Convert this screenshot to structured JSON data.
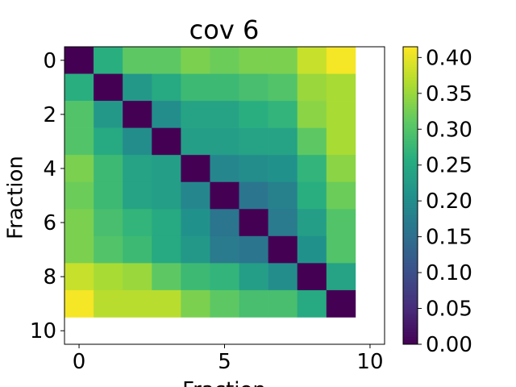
{
  "chart_data": {
    "type": "heatmap",
    "title": "cov 6",
    "xlabel": "Fraction",
    "ylabel": "Fraction",
    "colormap": "viridis",
    "z": [
      [
        0,
        0.26,
        0.31,
        0.31,
        0.33,
        0.32,
        0.33,
        0.33,
        0.38,
        0.41
      ],
      [
        0.26,
        0,
        0.22,
        0.25,
        0.28,
        0.28,
        0.29,
        0.3,
        0.35,
        0.36
      ],
      [
        0.3,
        0.22,
        0,
        0.2,
        0.24,
        0.24,
        0.26,
        0.27,
        0.34,
        0.36
      ],
      [
        0.3,
        0.25,
        0.2,
        0,
        0.23,
        0.23,
        0.24,
        0.24,
        0.31,
        0.36
      ],
      [
        0.33,
        0.28,
        0.24,
        0.23,
        0,
        0.19,
        0.2,
        0.21,
        0.27,
        0.34
      ],
      [
        0.32,
        0.28,
        0.24,
        0.23,
        0.19,
        0,
        0.16,
        0.18,
        0.26,
        0.32
      ],
      [
        0.33,
        0.29,
        0.27,
        0.25,
        0.21,
        0.16,
        0,
        0.17,
        0.23,
        0.3
      ],
      [
        0.33,
        0.3,
        0.28,
        0.25,
        0.22,
        0.17,
        0.16,
        0,
        0.21,
        0.3
      ],
      [
        0.38,
        0.36,
        0.35,
        0.31,
        0.28,
        0.27,
        0.23,
        0.2,
        0,
        0.24
      ],
      [
        0.41,
        0.37,
        0.37,
        0.37,
        0.33,
        0.31,
        0.29,
        0.29,
        0.25,
        0
      ]
    ],
    "xlim": [
      -0.5,
      10.5
    ],
    "ylim": [
      10.5,
      -0.5
    ],
    "xticks": [
      0,
      5,
      10
    ],
    "yticks": [
      0,
      2,
      4,
      6,
      8,
      10
    ],
    "clim": [
      0,
      0.415
    ],
    "cticks": [
      {
        "value": 0,
        "label": "0.00"
      },
      {
        "value": 0.05,
        "label": "0.05"
      },
      {
        "value": 0.1,
        "label": "0.10"
      },
      {
        "value": 0.15,
        "label": "0.15"
      },
      {
        "value": 0.2,
        "label": "0.20"
      },
      {
        "value": 0.25,
        "label": "0.25"
      },
      {
        "value": 0.3,
        "label": "0.30"
      },
      {
        "value": 0.35,
        "label": "0.35"
      },
      {
        "value": 0.4,
        "label": "0.40"
      }
    ]
  }
}
